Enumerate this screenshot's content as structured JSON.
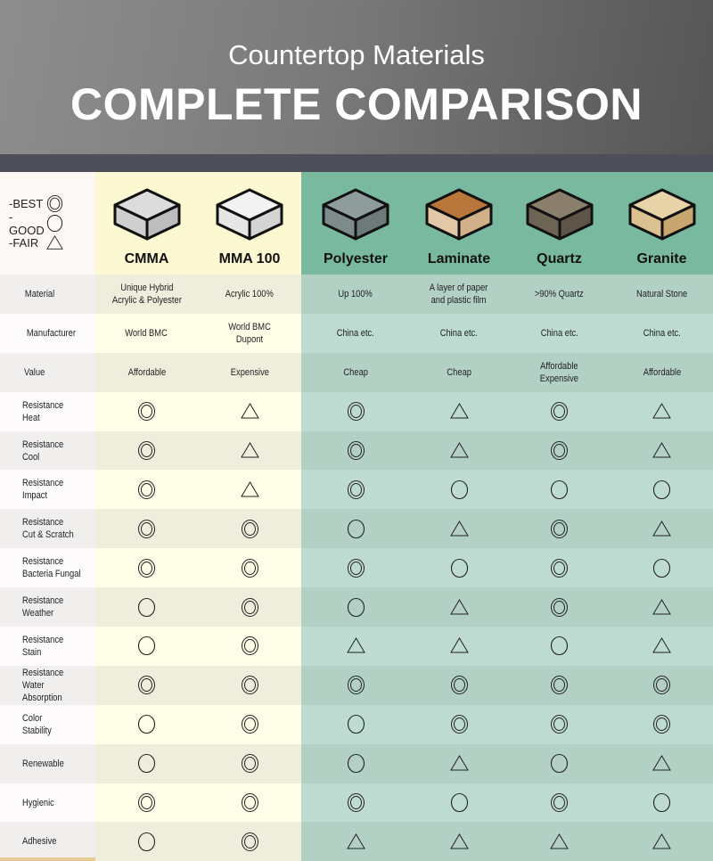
{
  "header": {
    "subtitle": "Countertop Materials",
    "title": "COMPLETE COMPARISON"
  },
  "legend": [
    {
      "label": "-BEST",
      "symbol": "best"
    },
    {
      "label": "-GOOD",
      "symbol": "good"
    },
    {
      "label": "-FAIR",
      "symbol": "fair"
    }
  ],
  "columns": [
    {
      "name": "CMMA",
      "group": "yellow",
      "swatch": {
        "top": "#dcdcdc",
        "left": "#cfcfcf",
        "right": "#bdbdbd"
      }
    },
    {
      "name": "MMA 100",
      "group": "yellow",
      "swatch": {
        "top": "#f2f2f2",
        "left": "#e6e6e6",
        "right": "#d4d4d4"
      }
    },
    {
      "name": "Polyester",
      "group": "green",
      "swatch": {
        "top": "#8e9c9c",
        "left": "#7d8b8b",
        "right": "#6c7a7a"
      }
    },
    {
      "name": "Laminate",
      "group": "green",
      "swatch": {
        "top": "#b8763a",
        "left": "#e2c8a6",
        "right": "#d2b08a"
      }
    },
    {
      "name": "Quartz",
      "group": "green",
      "swatch": {
        "top": "#8a7e6c",
        "left": "#6e6456",
        "right": "#5e5548"
      }
    },
    {
      "name": "Granite",
      "group": "green",
      "swatch": {
        "top": "#e8d4a8",
        "left": "#dcc190",
        "right": "#c9a670"
      }
    }
  ],
  "colors": {
    "yellow_header": "#fbf8d2",
    "green_header": "#79b9a0",
    "band": "#4d5058"
  },
  "text_rows": [
    {
      "label": "Material",
      "values": [
        "Unique Hybrid\nAcrylic & Polyester",
        "Acrylic 100%",
        "Up 100%",
        "A layer of paper\nand plastic film",
        ">90% Quartz",
        "Natural Stone"
      ]
    },
    {
      "label": "Manufacturer",
      "values": [
        "World BMC",
        "World BMC\nDupont",
        "China etc.",
        "China etc.",
        "China etc.",
        "China etc."
      ]
    },
    {
      "label": "Value",
      "values": [
        "Affordable",
        "Expensive",
        "Cheap",
        "Cheap",
        "Affordable\nExpensive",
        "Affordable"
      ]
    }
  ],
  "rating_rows": [
    {
      "label": "Resistance\nHeat",
      "values": [
        "best",
        "fair",
        "best",
        "fair",
        "best",
        "fair"
      ]
    },
    {
      "label": "Resistance\nCool",
      "values": [
        "best",
        "fair",
        "best",
        "fair",
        "best",
        "fair"
      ]
    },
    {
      "label": "Resistance\nImpact",
      "values": [
        "best",
        "fair",
        "best",
        "good",
        "good",
        "good"
      ]
    },
    {
      "label": "Resistance\nCut & Scratch",
      "values": [
        "best",
        "best",
        "good",
        "fair",
        "best",
        "fair"
      ]
    },
    {
      "label": "Resistance\nBacteria Fungal",
      "values": [
        "best",
        "best",
        "best",
        "good",
        "best",
        "good"
      ]
    },
    {
      "label": "Resistance\nWeather",
      "values": [
        "good",
        "best",
        "good",
        "fair",
        "best",
        "fair"
      ]
    },
    {
      "label": "Resistance\nStain",
      "values": [
        "good",
        "best",
        "fair",
        "fair",
        "good",
        "fair"
      ]
    },
    {
      "label": "Resistance\nWater Absorption",
      "values": [
        "best",
        "best",
        "best",
        "best",
        "best",
        "best"
      ]
    },
    {
      "label": "Color\nStability",
      "values": [
        "good",
        "best",
        "good",
        "best",
        "best",
        "best"
      ]
    },
    {
      "label": "Renewable",
      "values": [
        "good",
        "best",
        "good",
        "fair",
        "good",
        "fair"
      ]
    },
    {
      "label": "Hygienic",
      "values": [
        "best",
        "best",
        "best",
        "good",
        "best",
        "good"
      ]
    },
    {
      "label": "Adhesive",
      "values": [
        "good",
        "best",
        "fair",
        "fair",
        "fair",
        "fair"
      ]
    }
  ]
}
